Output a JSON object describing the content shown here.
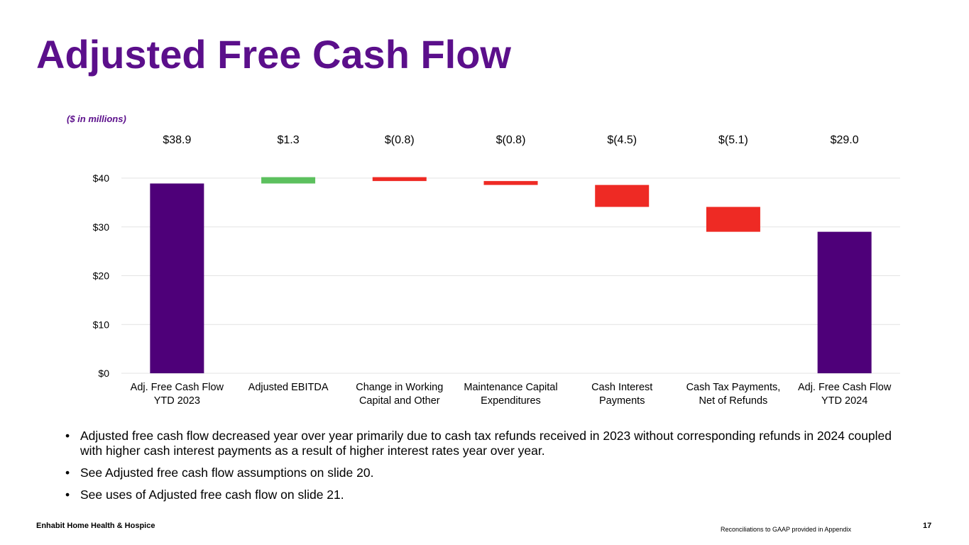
{
  "slide": {
    "title": "Adjusted Free Cash Flow",
    "units_note": "($ in millions)",
    "bullets": [
      "Adjusted free cash flow decreased year over year primarily due to cash tax refunds received in 2023 without corresponding refunds in 2024 coupled with higher cash interest payments as a result of higher interest rates year over year.",
      "See Adjusted free cash flow assumptions on slide 20.",
      "See uses of Adjusted free cash flow on slide 21."
    ],
    "bullet_symbol": "•",
    "footer_company": "Enhabit Home Health & Hospice",
    "footer_note": "Reconciliations to GAAP provided in Appendix",
    "page_number": "17"
  },
  "chart_data": {
    "type": "bar",
    "variant": "waterfall",
    "categories": [
      [
        "Adj. Free Cash Flow",
        "YTD 2023"
      ],
      [
        "Adjusted EBITDA"
      ],
      [
        "Change in Working",
        "Capital and Other"
      ],
      [
        "Maintenance Capital",
        "Expenditures"
      ],
      [
        "Cash Interest",
        "Payments"
      ],
      [
        "Cash Tax Payments,",
        "Net of Refunds"
      ],
      [
        "Adj. Free Cash Flow",
        "YTD 2024"
      ]
    ],
    "values": [
      38.9,
      1.3,
      -0.8,
      -0.8,
      -4.5,
      -5.1,
      29.0
    ],
    "bar_kinds": [
      "total",
      "delta",
      "delta",
      "delta",
      "delta",
      "delta",
      "total"
    ],
    "value_labels": [
      "$38.9",
      "$1.3",
      "$(0.8)",
      "$(0.8)",
      "$(4.5)",
      "$(5.1)",
      "$29.0"
    ],
    "ylim": [
      0,
      40
    ],
    "yticks": [
      0,
      10,
      20,
      30,
      40
    ],
    "ytick_labels": [
      "$0",
      "$10",
      "$20",
      "$30",
      "$40"
    ],
    "grid": true,
    "colors": {
      "total": "#4e0079",
      "increase": "#5cc05e",
      "decrease": "#ee2a24",
      "grid": "#e3e3e3"
    }
  }
}
